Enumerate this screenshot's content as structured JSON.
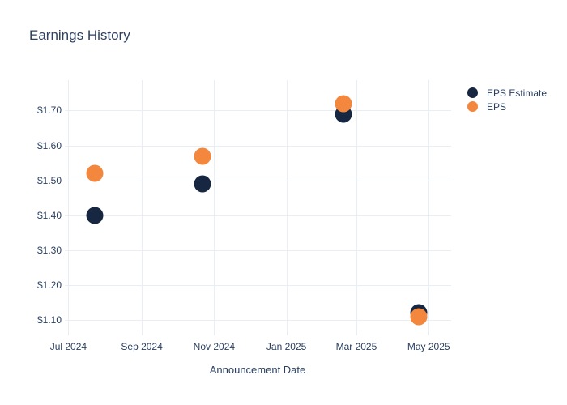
{
  "title": "Earnings History",
  "colors": {
    "background": "#ffffff",
    "text": "#2a3f5f",
    "gridline": "#e9eef5",
    "eps_estimate": "#172741",
    "eps": "#f2873d"
  },
  "legend": {
    "items": [
      {
        "label": "EPS Estimate",
        "color": "#172741"
      },
      {
        "label": "EPS",
        "color": "#f2873d"
      }
    ]
  },
  "chart_data": {
    "type": "scatter",
    "title": "Earnings History",
    "xlabel": "Announcement Date",
    "ylabel": "",
    "grid": true,
    "legend_position": "top-right",
    "x_ticks": [
      {
        "date": "2024-07-01",
        "label": "Jul 2024"
      },
      {
        "date": "2024-09-01",
        "label": "Sep 2024"
      },
      {
        "date": "2024-11-01",
        "label": "Nov 2024"
      },
      {
        "date": "2025-01-01",
        "label": "Jan 2025"
      },
      {
        "date": "2025-03-01",
        "label": "Mar 2025"
      },
      {
        "date": "2025-05-01",
        "label": "May 2025"
      }
    ],
    "y_ticks": [
      {
        "value": 1.1,
        "label": "$1.10"
      },
      {
        "value": 1.2,
        "label": "$1.20"
      },
      {
        "value": 1.3,
        "label": "$1.30"
      },
      {
        "value": 1.4,
        "label": "$1.40"
      },
      {
        "value": 1.5,
        "label": "$1.50"
      },
      {
        "value": 1.6,
        "label": "$1.60"
      },
      {
        "value": 1.7,
        "label": "$1.70"
      }
    ],
    "x_range": [
      "2024-06-28",
      "2025-05-20"
    ],
    "y_range": [
      1.056,
      1.787
    ],
    "series": [
      {
        "name": "EPS Estimate",
        "color": "#172741",
        "points": [
          {
            "date": "2024-07-23",
            "value": 1.4
          },
          {
            "date": "2024-10-22",
            "value": 1.49
          },
          {
            "date": "2025-02-18",
            "value": 1.69
          },
          {
            "date": "2025-04-23",
            "value": 1.12
          }
        ]
      },
      {
        "name": "EPS",
        "color": "#f2873d",
        "points": [
          {
            "date": "2024-07-23",
            "value": 1.52
          },
          {
            "date": "2024-10-22",
            "value": 1.57
          },
          {
            "date": "2025-02-18",
            "value": 1.72
          },
          {
            "date": "2025-04-23",
            "value": 1.11
          }
        ]
      }
    ]
  }
}
